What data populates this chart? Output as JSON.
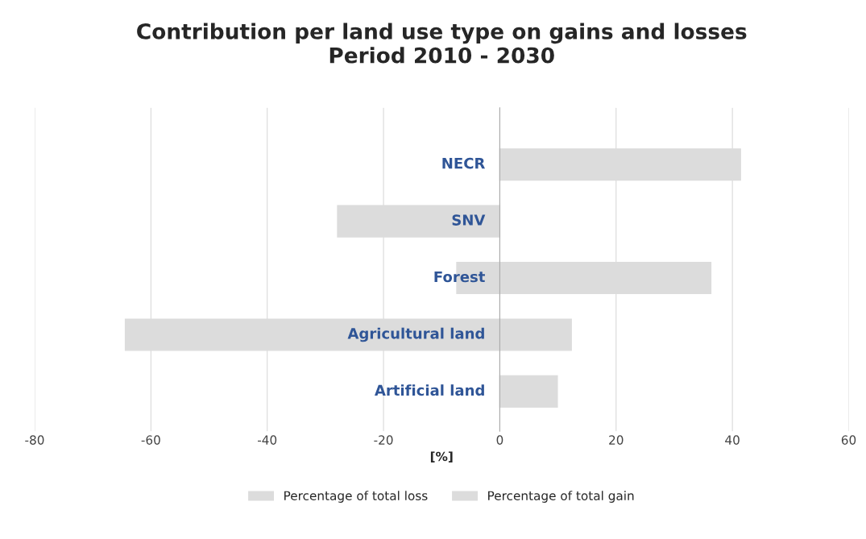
{
  "chart_data": {
    "type": "bar",
    "orientation": "horizontal",
    "stacked": false,
    "title": "Contribution per land use type on gains and losses\nPeriod 2010 - 2030",
    "xlabel": "[%]",
    "categories": [
      "NECR",
      "SNV",
      "Forest",
      "Agricultural land",
      "Artificial land"
    ],
    "series": [
      {
        "name": "Percentage of total loss",
        "color": "#dcdcdc",
        "values": [
          null,
          -27.9,
          -7.4,
          -64.4,
          null
        ]
      },
      {
        "name": "Percentage of total gain",
        "color": "#dcdcdc",
        "values": [
          41.4,
          null,
          36.3,
          12.3,
          9.9
        ]
      }
    ],
    "xlim": [
      -80,
      60
    ],
    "xticks": [
      -80,
      -60,
      -40,
      -20,
      0,
      20,
      40,
      60
    ],
    "grid": "x",
    "legend": "bottom"
  }
}
